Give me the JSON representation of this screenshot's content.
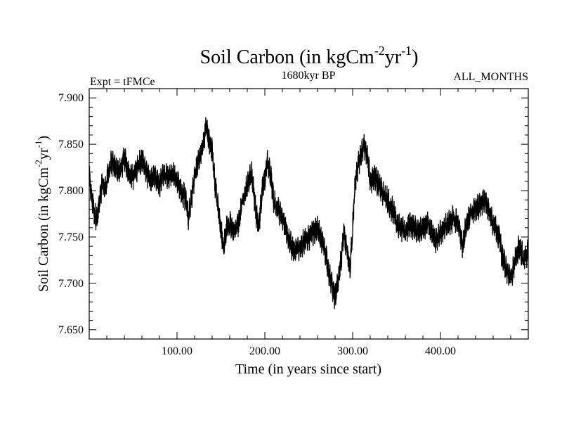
{
  "chart_data": {
    "type": "line",
    "title": "Soil Carbon (in kgCm",
    "title_sup1": "-2",
    "title_mid": "yr",
    "title_sup2": "-1",
    "title_end": ")",
    "subtitle_left": "Expt = tFMCe",
    "subtitle_center": "1680kyr BP",
    "subtitle_right": "ALL_MONTHS",
    "xlabel": "Time (in years since start)",
    "ylabel": "Soil Carbon (in kgCm",
    "ylabel_sup1": "-2",
    "ylabel_mid": "yr",
    "ylabel_sup2": "-1",
    "ylabel_end": ")",
    "xlim": [
      0,
      500
    ],
    "ylim": [
      7.64,
      7.91
    ],
    "x_ticks": [
      100,
      200,
      300,
      400
    ],
    "x_tick_labels": [
      "100.00",
      "200.00",
      "300.00",
      "400.00"
    ],
    "y_ticks": [
      7.65,
      7.7,
      7.75,
      7.8,
      7.85,
      7.9
    ],
    "y_tick_labels": [
      "7.650",
      "7.700",
      "7.750",
      "7.800",
      "7.850",
      "7.900"
    ],
    "line_color": "#000000",
    "series": [
      {
        "x": [
          0,
          3,
          6,
          9,
          12,
          15,
          18,
          21,
          25,
          30,
          35,
          40,
          45,
          50,
          55,
          60,
          65,
          70,
          75,
          80,
          85,
          90,
          95,
          100,
          105,
          110,
          113,
          116,
          120,
          125,
          130,
          133,
          136,
          140,
          143,
          147,
          150,
          153,
          157,
          160,
          165,
          170,
          175,
          180,
          185,
          190,
          193,
          197,
          200,
          203,
          207,
          210,
          215,
          220,
          225,
          230,
          235,
          240,
          245,
          250,
          255,
          260,
          265,
          270,
          273,
          277,
          280,
          283,
          287,
          290,
          293,
          297,
          300,
          303,
          307,
          310,
          313,
          317,
          320,
          325,
          330,
          335,
          340,
          345,
          350,
          355,
          360,
          365,
          370,
          375,
          380,
          385,
          390,
          395,
          400,
          405,
          410,
          415,
          420,
          425,
          430,
          435,
          440,
          445,
          450,
          455,
          460,
          463,
          467,
          470,
          475,
          480,
          485,
          490,
          495,
          500
        ],
        "y": [
          7.815,
          7.79,
          7.775,
          7.77,
          7.79,
          7.81,
          7.8,
          7.815,
          7.83,
          7.825,
          7.82,
          7.835,
          7.82,
          7.815,
          7.825,
          7.835,
          7.82,
          7.81,
          7.815,
          7.805,
          7.82,
          7.815,
          7.82,
          7.81,
          7.8,
          7.79,
          7.77,
          7.79,
          7.815,
          7.835,
          7.85,
          7.87,
          7.855,
          7.845,
          7.81,
          7.78,
          7.76,
          7.74,
          7.76,
          7.765,
          7.755,
          7.765,
          7.79,
          7.805,
          7.82,
          7.775,
          7.76,
          7.8,
          7.815,
          7.83,
          7.815,
          7.79,
          7.78,
          7.77,
          7.755,
          7.74,
          7.735,
          7.74,
          7.745,
          7.75,
          7.755,
          7.76,
          7.745,
          7.73,
          7.71,
          7.695,
          7.685,
          7.7,
          7.725,
          7.755,
          7.735,
          7.715,
          7.76,
          7.81,
          7.83,
          7.84,
          7.85,
          7.835,
          7.81,
          7.815,
          7.805,
          7.795,
          7.79,
          7.78,
          7.765,
          7.76,
          7.755,
          7.765,
          7.76,
          7.755,
          7.76,
          7.765,
          7.755,
          7.745,
          7.755,
          7.76,
          7.765,
          7.77,
          7.765,
          7.74,
          7.765,
          7.775,
          7.78,
          7.785,
          7.79,
          7.78,
          7.765,
          7.76,
          7.75,
          7.73,
          7.715,
          7.705,
          7.725,
          7.74,
          7.725,
          7.735
        ]
      }
    ]
  }
}
